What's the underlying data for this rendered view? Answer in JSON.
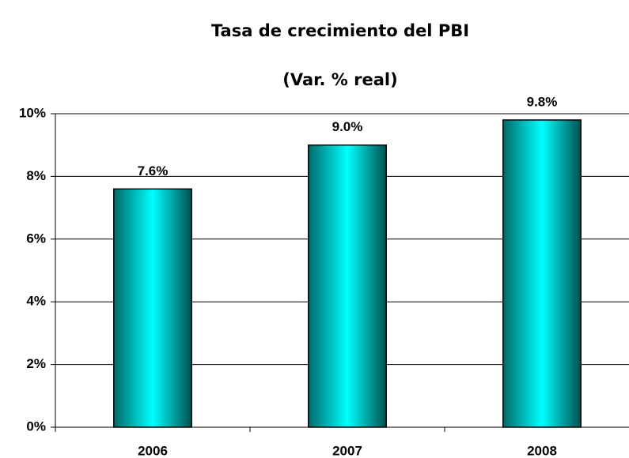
{
  "chart_data": {
    "type": "bar",
    "title": "Tasa de crecimiento del PBI",
    "subtitle": "(Var. % real)",
    "categories": [
      "2006",
      "2007",
      "2008"
    ],
    "values": [
      7.6,
      9.0,
      9.8
    ],
    "value_labels": [
      "7.6%",
      "9.0%",
      "9.8%"
    ],
    "color": "#00ffff",
    "ylim": [
      0,
      10
    ],
    "yticks": [
      {
        "value": 0,
        "label": "0%"
      },
      {
        "value": 2,
        "label": "2%"
      },
      {
        "value": 4,
        "label": "4%"
      },
      {
        "value": 6,
        "label": "6%"
      },
      {
        "value": 8,
        "label": "8%"
      },
      {
        "value": 10,
        "label": "10%"
      }
    ],
    "grid": true
  }
}
